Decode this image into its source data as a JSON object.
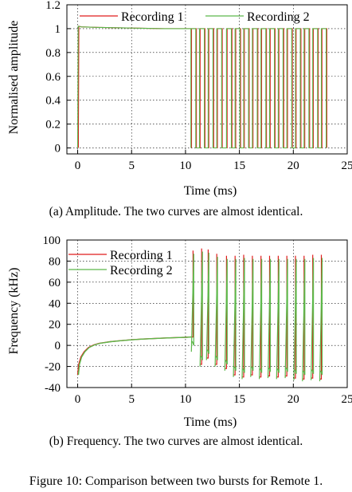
{
  "chart_data": [
    {
      "type": "line",
      "xlabel": "Time (ms)",
      "ylabel": "Normalised amplitude",
      "xlim": [
        -1,
        25
      ],
      "ylim": [
        -0.05,
        1.2
      ],
      "xticks": [
        0,
        5,
        10,
        15,
        20,
        25
      ],
      "yticks": [
        0,
        0.2,
        0.4,
        0.6,
        0.8,
        1,
        1.2
      ],
      "grid": true,
      "legend_position": "top",
      "pulse_times_ms": [
        10.5,
        11.3,
        12.1,
        12.9,
        13.8,
        14.6,
        15.4,
        16.2,
        17.0,
        17.8,
        18.6,
        19.4,
        20.2,
        21.0,
        21.8,
        22.6
      ],
      "pulse_width_ms": 0.45,
      "series": [
        {
          "name": "Recording 1",
          "color": "#e01c1c",
          "x": [
            0,
            0.05,
            0.3,
            2,
            5,
            8,
            10.5
          ],
          "y": [
            0,
            1.02,
            1.015,
            1.01,
            1.005,
            1.0,
            1.0
          ]
        },
        {
          "name": "Recording 2",
          "color": "#5cb84a",
          "x": [
            0,
            0.05,
            0.3,
            2,
            5,
            8,
            10.5
          ],
          "y": [
            0,
            1.02,
            1.015,
            1.01,
            1.005,
            1.0,
            1.0
          ]
        }
      ]
    },
    {
      "type": "line",
      "xlabel": "Time (ms)",
      "ylabel": "Frequency (kHz)",
      "xlim": [
        -1,
        25
      ],
      "ylim": [
        -40,
        100
      ],
      "xticks": [
        0,
        5,
        10,
        15,
        20,
        25
      ],
      "yticks": [
        -40,
        -20,
        0,
        20,
        40,
        60,
        80,
        100
      ],
      "grid": true,
      "legend_position": "top-left",
      "chirp_start": [
        -28,
        -25
      ],
      "ramp": {
        "x": [
          0,
          0.1,
          0.3,
          0.6,
          1,
          1.5,
          2,
          3,
          4,
          5,
          6,
          7,
          8,
          9,
          10,
          10.5
        ],
        "y": [
          -28,
          -18,
          -11,
          -6,
          -2,
          0.5,
          2,
          3.5,
          4.5,
          5.3,
          6,
          6.5,
          7,
          7.4,
          7.7,
          8
        ]
      },
      "spikes": [
        {
          "x": 10.7,
          "lo": 8,
          "hi": 90
        },
        {
          "x": 11.5,
          "lo": -18,
          "hi": 92
        },
        {
          "x": 12.1,
          "lo": -12,
          "hi": 91
        },
        {
          "x": 12.9,
          "lo": -18,
          "hi": 87
        },
        {
          "x": 13.8,
          "lo": -22,
          "hi": 85
        },
        {
          "x": 14.6,
          "lo": -28,
          "hi": 85
        },
        {
          "x": 15.4,
          "lo": -30,
          "hi": 86
        },
        {
          "x": 16.2,
          "lo": -28,
          "hi": 85
        },
        {
          "x": 17.0,
          "lo": -30,
          "hi": 85
        },
        {
          "x": 17.8,
          "lo": -29,
          "hi": 85
        },
        {
          "x": 18.6,
          "lo": -30,
          "hi": 85
        },
        {
          "x": 19.4,
          "lo": -29,
          "hi": 85
        },
        {
          "x": 20.2,
          "lo": -31,
          "hi": 85
        },
        {
          "x": 21.0,
          "lo": -32,
          "hi": 85
        },
        {
          "x": 21.8,
          "lo": -31,
          "hi": 86
        },
        {
          "x": 22.6,
          "lo": -32,
          "hi": 86
        }
      ],
      "series": [
        {
          "name": "Recording 1",
          "color": "#e01c1c"
        },
        {
          "name": "Recording 2",
          "color": "#5cb84a"
        }
      ]
    }
  ],
  "captions": {
    "a": "(a) Amplitude. The two curves are almost identical.",
    "b": "(b) Frequency. The two curves are almost identical.",
    "figure": "Figure 10: Comparison between two bursts for Remote 1."
  }
}
